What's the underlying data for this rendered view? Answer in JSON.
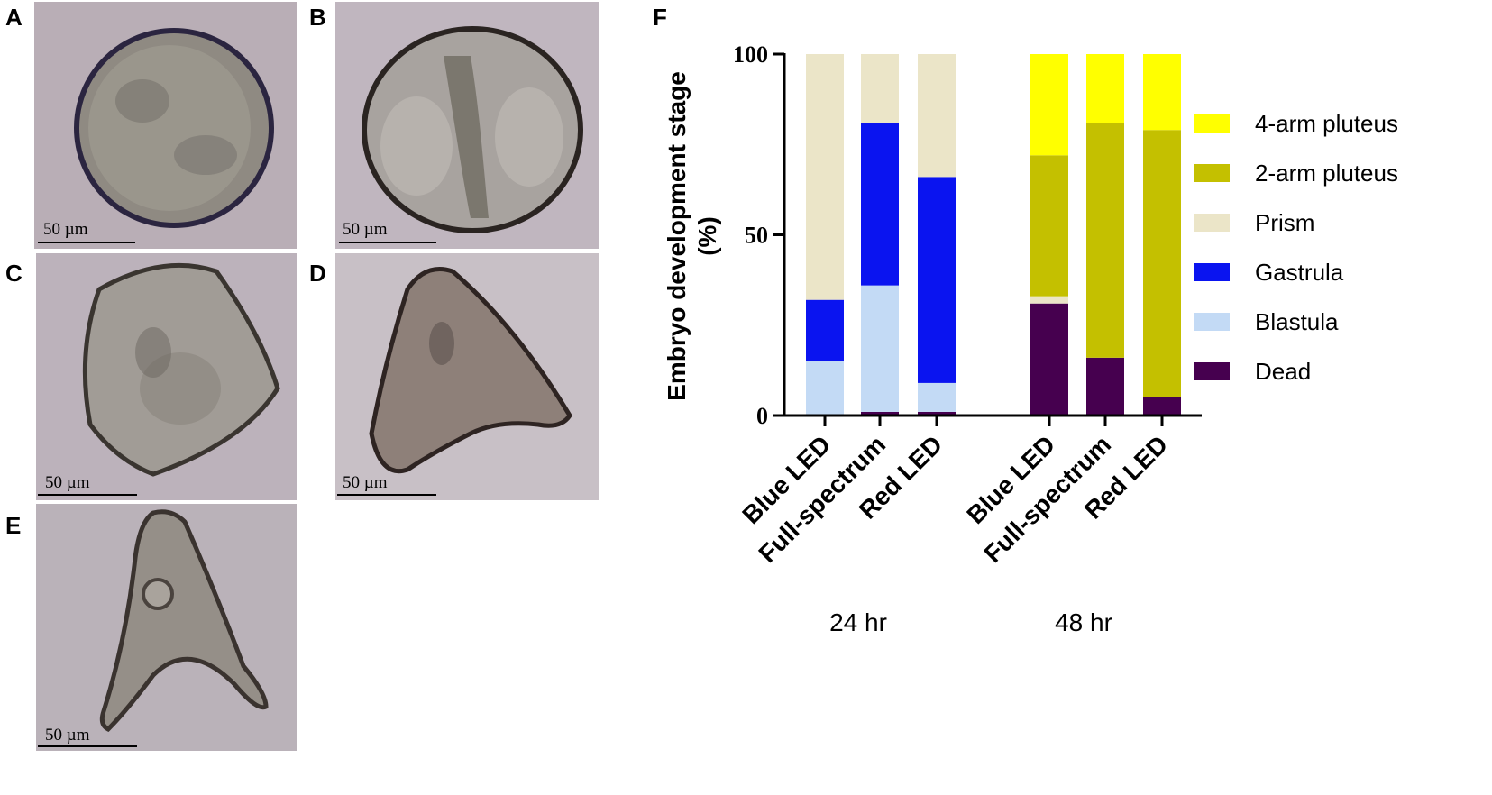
{
  "panels": {
    "A": {
      "letter": "A",
      "scale_label": "50 µm"
    },
    "B": {
      "letter": "B",
      "scale_label": "50 µm"
    },
    "C": {
      "letter": "C",
      "scale_label": "50 µm"
    },
    "D": {
      "letter": "D",
      "scale_label": "50 µm"
    },
    "E": {
      "letter": "E",
      "scale_label": "50 µm"
    },
    "F": {
      "letter": "F"
    }
  },
  "colors": {
    "micro_bg": "#b9aeb6",
    "4-arm pluteus": "#ffff00",
    "2-arm pluteus": "#c4c000",
    "Prism": "#ebe5c8",
    "Gastrula": "#0a14f0",
    "Blastula": "#c3daf5",
    "Dead": "#46004f"
  },
  "chart_data": {
    "type": "bar",
    "stacked": true,
    "ylabel": "Embryo development stage (%)",
    "ylim": [
      0,
      100
    ],
    "yticks": [
      "0",
      "50",
      "100"
    ],
    "groups": [
      {
        "label": "24 hr",
        "categories": [
          "Blue LED",
          "Full-spectrum",
          "Red LED"
        ]
      },
      {
        "label": "48 hr",
        "categories": [
          "Blue LED",
          "Full-spectrum",
          "Red LED"
        ]
      }
    ],
    "categories": [
      "Blue LED",
      "Full-spectrum",
      "Red LED",
      "Blue LED",
      "Full-spectrum",
      "Red LED"
    ],
    "series": [
      {
        "name": "Dead",
        "values": [
          0,
          1,
          1,
          31,
          16,
          5
        ]
      },
      {
        "name": "Blastula",
        "values": [
          15,
          35,
          8,
          0,
          0,
          0
        ]
      },
      {
        "name": "Gastrula",
        "values": [
          17,
          45,
          57,
          0,
          0,
          0
        ]
      },
      {
        "name": "Prism",
        "values": [
          68,
          19,
          34,
          2,
          0,
          0
        ]
      },
      {
        "name": "2-arm pluteus",
        "values": [
          0,
          0,
          0,
          39,
          65,
          74
        ]
      },
      {
        "name": "4-arm pluteus",
        "values": [
          0,
          0,
          0,
          28,
          19,
          21
        ]
      }
    ],
    "legend_order": [
      "4-arm pluteus",
      "2-arm pluteus",
      "Prism",
      "Gastrula",
      "Blastula",
      "Dead"
    ],
    "legend_position": "right",
    "grid": false
  }
}
